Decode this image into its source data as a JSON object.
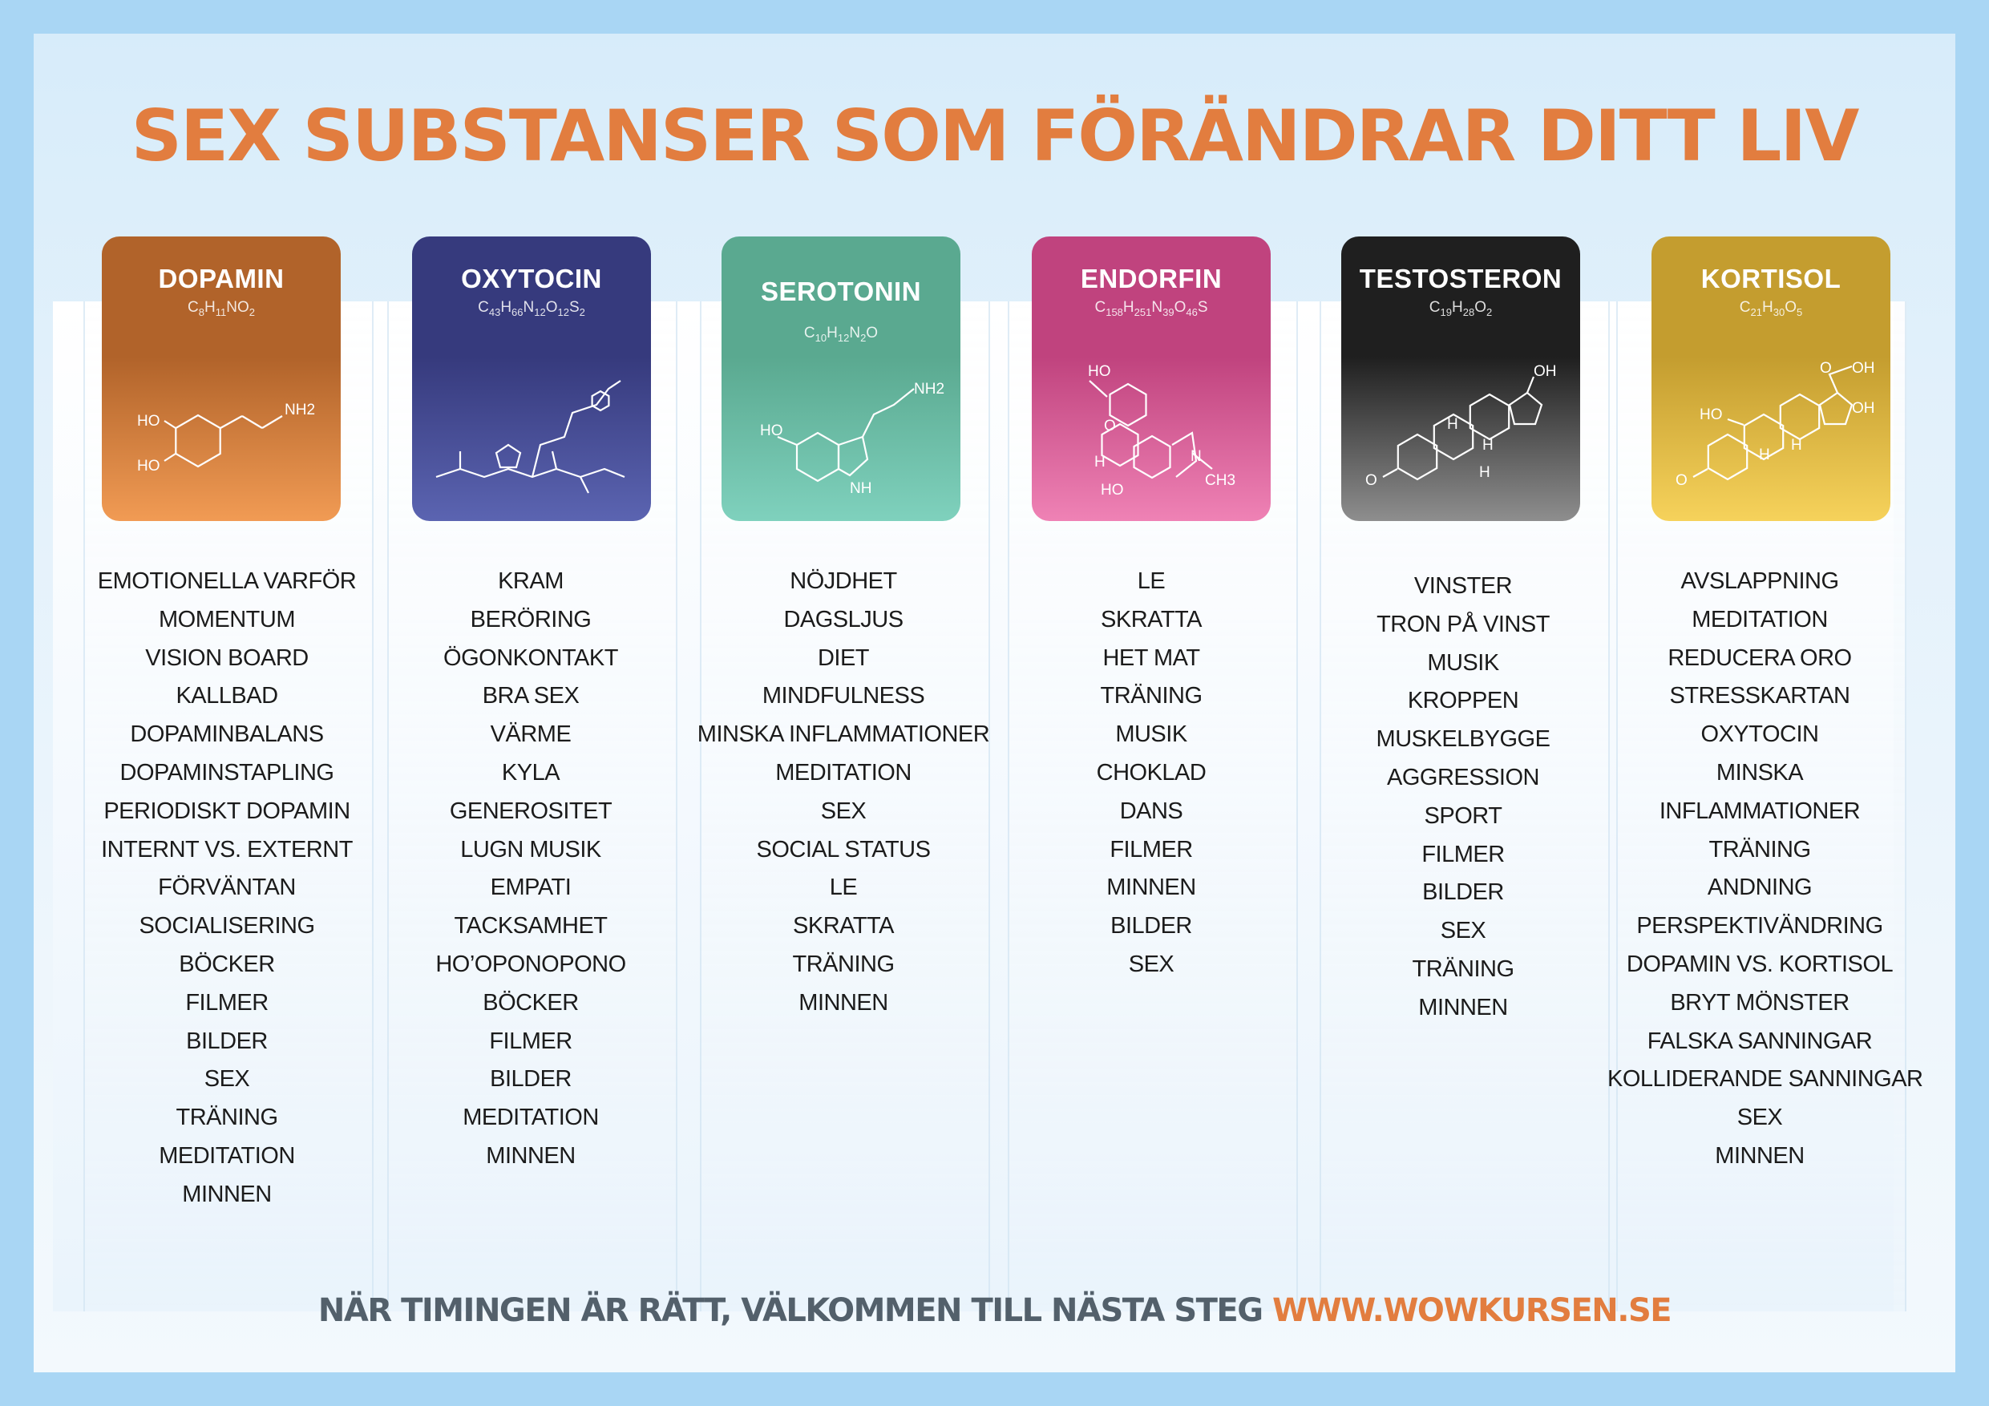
{
  "title": "SEX SUBSTANSER SOM FÖRÄNDRAR DITT LIV",
  "footer": {
    "text": "NÄR TIMINGEN ÄR RÄTT, VÄLKOMMEN TILL NÄSTA STEG",
    "url": "WWW.WOWKURSEN.SE"
  },
  "colors": {
    "accent": "#e27d3f",
    "dopamin": [
      "#b1632a",
      "#f19b54"
    ],
    "oxytocin": [
      "#363a7d",
      "#5b64b1"
    ],
    "serotonin": [
      "#5aa990",
      "#7fd1bd"
    ],
    "endorfin": [
      "#c0437e",
      "#ef82b5"
    ],
    "testosteron": [
      "#1f1f1f",
      "#8e8e8e"
    ],
    "kortisol": [
      "#c49d2f",
      "#f6d25b"
    ]
  },
  "substances": [
    {
      "name": "DOPAMIN",
      "formula": "C8H11NO2",
      "molecule_labels": [
        "HO",
        "HO",
        "NH2"
      ],
      "items": [
        "EMOTIONELLA VARFÖR",
        "MOMENTUM",
        "VISION BOARD",
        "KALLBAD",
        "DOPAMINBALANS",
        "DOPAMINSTAPLING",
        "PERIODISKT DOPAMIN",
        "INTERNT VS. EXTERNT",
        "FÖRVÄNTAN",
        "SOCIALISERING",
        "BÖCKER",
        "FILMER",
        "BILDER",
        "SEX",
        "TRÄNING",
        "MEDITATION",
        "MINNEN"
      ]
    },
    {
      "name": "OXYTOCIN",
      "formula": "C43H66N12O12S2",
      "molecule_labels": [],
      "items": [
        "KRAM",
        "BERÖRING",
        "ÖGONKONTAKT",
        "BRA SEX",
        "VÄRME",
        "KYLA",
        "GENEROSITET",
        "LUGN MUSIK",
        "EMPATI",
        "TACKSAMHET",
        "HO’OPONOPONO",
        "BÖCKER",
        "FILMER",
        "BILDER",
        "MEDITATION",
        "MINNEN"
      ]
    },
    {
      "name": "SEROTONIN",
      "formula": "C10H12N2O",
      "molecule_labels": [
        "HO",
        "NH2",
        "NH"
      ],
      "items": [
        "NÖJDHET",
        "DAGSLJUS",
        "DIET",
        "MINDFULNESS",
        "MINSKA INFLAMMATIONER",
        "MEDITATION",
        "SEX",
        "SOCIAL STATUS",
        "LE",
        "SKRATTA",
        "TRÄNING",
        "MINNEN"
      ]
    },
    {
      "name": "ENDORFIN",
      "formula": "C158H251N39O46S",
      "molecule_labels": [
        "HO",
        "O",
        "H",
        "HO",
        "N",
        "CH3"
      ],
      "items": [
        "LE",
        "SKRATTA",
        "HET MAT",
        "TRÄNING",
        "MUSIK",
        "CHOKLAD",
        "DANS",
        "FILMER",
        "MINNEN",
        "BILDER",
        "SEX"
      ]
    },
    {
      "name": "TESTOSTERON",
      "formula": "C19H28O2",
      "molecule_labels": [
        "OH",
        "H",
        "H",
        "H",
        "O"
      ],
      "items": [
        "VINSTER",
        "TRON PÅ VINST",
        "MUSIK",
        "KROPPEN",
        "MUSKELBYGGE",
        "AGGRESSION",
        "SPORT",
        "FILMER",
        "BILDER",
        "SEX",
        "TRÄNING",
        "MINNEN"
      ]
    },
    {
      "name": "KORTISOL",
      "formula": "C21H30O5",
      "molecule_labels": [
        "O",
        "OH",
        "HO",
        "OH",
        "H",
        "H",
        "O"
      ],
      "items": [
        "AVSLAPPNING",
        "MEDITATION",
        "REDUCERA ORO",
        "STRESSKARTAN",
        "OXYTOCIN",
        "MINSKA",
        "INFLAMMATIONER",
        "TRÄNING",
        "ANDNING",
        "PERSPEKTIVÄNDRING",
        "DOPAMIN VS. KORTISOL",
        "BRYT MÖNSTER",
        "FALSKA SANNINGAR",
        "KOLLIDERANDE SANNINGAR",
        "SEX",
        "MINNEN"
      ]
    }
  ]
}
